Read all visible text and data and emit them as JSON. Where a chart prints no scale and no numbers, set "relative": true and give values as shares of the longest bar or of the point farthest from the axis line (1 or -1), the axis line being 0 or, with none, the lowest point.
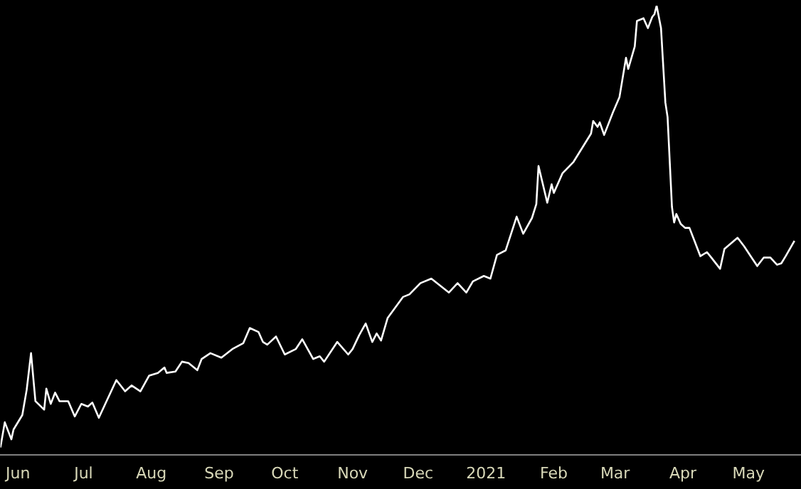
{
  "chart_data": {
    "type": "line",
    "relative": true,
    "xlim": [
      "2020-05-24",
      "2021-05-25"
    ],
    "xticks": [
      {
        "value": "2020-06-01",
        "label": "Jun"
      },
      {
        "value": "2020-07-01",
        "label": "Jul"
      },
      {
        "value": "2020-08-01",
        "label": "Aug"
      },
      {
        "value": "2020-09-01",
        "label": "Sep"
      },
      {
        "value": "2020-10-01",
        "label": "Oct"
      },
      {
        "value": "2020-11-01",
        "label": "Nov"
      },
      {
        "value": "2020-12-01",
        "label": "Dec"
      },
      {
        "value": "2021-01-01",
        "label": "2021"
      },
      {
        "value": "2021-02-01",
        "label": "Feb"
      },
      {
        "value": "2021-03-01",
        "label": "Mar"
      },
      {
        "value": "2021-04-01",
        "label": "Apr"
      },
      {
        "value": "2021-05-01",
        "label": "May"
      }
    ],
    "x": [
      "2020-05-24",
      "2020-05-26",
      "2020-05-29",
      "2020-05-30",
      "2020-06-03",
      "2020-06-05",
      "2020-06-07",
      "2020-06-09",
      "2020-06-13",
      "2020-06-14",
      "2020-06-16",
      "2020-06-18",
      "2020-06-20",
      "2020-06-24",
      "2020-06-27",
      "2020-06-30",
      "2020-07-03",
      "2020-07-05",
      "2020-07-08",
      "2020-07-16",
      "2020-07-20",
      "2020-07-23",
      "2020-07-27",
      "2020-07-31",
      "2020-08-04",
      "2020-08-07",
      "2020-08-08",
      "2020-08-12",
      "2020-08-15",
      "2020-08-18",
      "2020-08-22",
      "2020-08-24",
      "2020-08-28",
      "2020-09-02",
      "2020-09-07",
      "2020-09-12",
      "2020-09-15",
      "2020-09-19",
      "2020-09-21",
      "2020-09-23",
      "2020-09-27",
      "2020-10-01",
      "2020-10-06",
      "2020-10-09",
      "2020-10-14",
      "2020-10-17",
      "2020-10-19",
      "2020-10-25",
      "2020-10-30",
      "2020-11-01",
      "2020-11-04",
      "2020-11-07",
      "2020-11-10",
      "2020-11-12",
      "2020-11-14",
      "2020-11-17",
      "2020-11-24",
      "2020-11-27",
      "2020-12-02",
      "2020-12-07",
      "2020-12-15",
      "2020-12-19",
      "2020-12-23",
      "2020-12-26",
      "2020-12-31",
      "2021-01-03",
      "2021-01-06",
      "2021-01-10",
      "2021-01-15",
      "2021-01-18",
      "2021-01-22",
      "2021-01-24",
      "2021-01-25",
      "2021-01-29",
      "2021-01-31",
      "2021-02-01",
      "2021-02-05",
      "2021-02-10",
      "2021-02-18",
      "2021-02-19",
      "2021-02-21",
      "2021-02-22",
      "2021-02-24",
      "2021-02-28",
      "2021-03-03",
      "2021-03-06",
      "2021-03-07",
      "2021-03-10",
      "2021-03-11",
      "2021-03-14",
      "2021-03-16",
      "2021-03-18",
      "2021-03-19",
      "2021-03-20",
      "2021-03-22",
      "2021-03-24",
      "2021-03-25",
      "2021-03-27",
      "2021-03-28",
      "2021-03-29",
      "2021-03-31",
      "2021-04-02",
      "2021-04-04",
      "2021-04-06",
      "2021-04-09",
      "2021-04-12",
      "2021-04-14",
      "2021-04-18",
      "2021-04-20",
      "2021-04-26",
      "2021-04-29",
      "2021-05-02",
      "2021-05-05",
      "2021-05-08",
      "2021-05-11",
      "2021-05-14",
      "2021-05-16",
      "2021-05-18",
      "2021-05-22"
    ],
    "series": [
      {
        "color": "#ffffff",
        "values": [
          0.016,
          0.072,
          0.034,
          0.056,
          0.088,
          0.144,
          0.226,
          0.119,
          0.1,
          0.147,
          0.113,
          0.138,
          0.119,
          0.119,
          0.085,
          0.113,
          0.107,
          0.116,
          0.082,
          0.166,
          0.141,
          0.154,
          0.141,
          0.176,
          0.182,
          0.194,
          0.182,
          0.185,
          0.207,
          0.204,
          0.188,
          0.213,
          0.226,
          0.216,
          0.235,
          0.248,
          0.282,
          0.273,
          0.251,
          0.245,
          0.263,
          0.223,
          0.235,
          0.257,
          0.213,
          0.219,
          0.207,
          0.251,
          0.223,
          0.235,
          0.266,
          0.292,
          0.251,
          0.27,
          0.254,
          0.304,
          0.351,
          0.357,
          0.382,
          0.392,
          0.361,
          0.382,
          0.361,
          0.386,
          0.398,
          0.392,
          0.445,
          0.455,
          0.53,
          0.492,
          0.527,
          0.558,
          0.643,
          0.561,
          0.602,
          0.583,
          0.627,
          0.652,
          0.715,
          0.743,
          0.73,
          0.74,
          0.712,
          0.762,
          0.796,
          0.884,
          0.859,
          0.909,
          0.966,
          0.972,
          0.95,
          0.975,
          0.981,
          1,
          0.95,
          0.784,
          0.752,
          0.552,
          0.517,
          0.536,
          0.514,
          0.505,
          0.505,
          0.48,
          0.442,
          0.451,
          0.439,
          0.414,
          0.458,
          0.483,
          0.464,
          0.442,
          0.42,
          0.439,
          0.439,
          0.423,
          0.426,
          0.442,
          0.476
        ]
      }
    ],
    "grid": false,
    "legend": false,
    "marker": "none",
    "line_style": "solid"
  }
}
